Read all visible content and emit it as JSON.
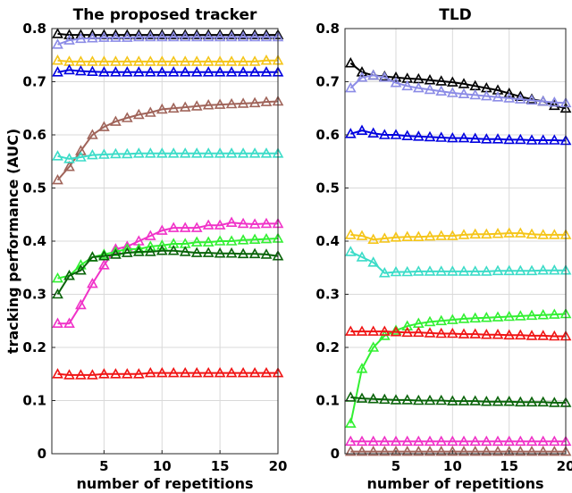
{
  "figure": {
    "ylabel": "tracking performance (AUC)"
  },
  "chart_data": [
    {
      "type": "line",
      "title": "The proposed tracker",
      "xlabel": "number of repetitions",
      "ylabel": "tracking performance (AUC)",
      "xlim": [
        0.5,
        20
      ],
      "ylim": [
        0,
        0.8
      ],
      "xticks": [
        5,
        10,
        15,
        20
      ],
      "yticks": [
        0,
        0.1,
        0.2,
        0.3,
        0.4,
        0.5,
        0.6,
        0.7,
        0.8
      ],
      "grid": true,
      "marker": "triangle",
      "x": [
        1,
        2,
        3,
        4,
        5,
        6,
        7,
        8,
        9,
        10,
        11,
        12,
        13,
        14,
        15,
        16,
        17,
        18,
        19,
        20
      ],
      "series": [
        {
          "color": "#000000",
          "values": [
            0.79,
            0.788,
            0.788,
            0.788,
            0.788,
            0.788,
            0.788,
            0.788,
            0.788,
            0.788,
            0.788,
            0.788,
            0.788,
            0.788,
            0.788,
            0.788,
            0.788,
            0.788,
            0.788,
            0.788
          ]
        },
        {
          "color": "#8c8ce6",
          "values": [
            0.77,
            0.778,
            0.781,
            0.782,
            0.783,
            0.783,
            0.783,
            0.784,
            0.784,
            0.784,
            0.784,
            0.784,
            0.784,
            0.784,
            0.784,
            0.784,
            0.784,
            0.784,
            0.784,
            0.784
          ]
        },
        {
          "color": "#f5c518",
          "values": [
            0.74,
            0.738,
            0.738,
            0.738,
            0.738,
            0.738,
            0.738,
            0.738,
            0.738,
            0.738,
            0.738,
            0.738,
            0.738,
            0.738,
            0.738,
            0.738,
            0.738,
            0.738,
            0.74,
            0.74
          ]
        },
        {
          "color": "#0000e0",
          "values": [
            0.718,
            0.722,
            0.72,
            0.719,
            0.718,
            0.718,
            0.718,
            0.718,
            0.718,
            0.718,
            0.718,
            0.718,
            0.718,
            0.718,
            0.718,
            0.718,
            0.718,
            0.718,
            0.718,
            0.718
          ]
        },
        {
          "color": "#a0645a",
          "values": [
            0.515,
            0.54,
            0.57,
            0.6,
            0.615,
            0.625,
            0.632,
            0.638,
            0.642,
            0.648,
            0.65,
            0.652,
            0.654,
            0.656,
            0.657,
            0.658,
            0.659,
            0.66,
            0.662,
            0.663
          ]
        },
        {
          "color": "#3cdcc8",
          "values": [
            0.56,
            0.555,
            0.558,
            0.562,
            0.563,
            0.564,
            0.564,
            0.565,
            0.565,
            0.565,
            0.565,
            0.565,
            0.565,
            0.565,
            0.565,
            0.565,
            0.565,
            0.565,
            0.565,
            0.565
          ]
        },
        {
          "color": "#f032c8",
          "values": [
            0.245,
            0.245,
            0.28,
            0.32,
            0.355,
            0.385,
            0.39,
            0.4,
            0.41,
            0.42,
            0.425,
            0.425,
            0.425,
            0.43,
            0.43,
            0.435,
            0.433,
            0.432,
            0.433,
            0.433
          ]
        },
        {
          "color": "#32f032",
          "values": [
            0.33,
            0.335,
            0.355,
            0.37,
            0.375,
            0.38,
            0.385,
            0.385,
            0.39,
            0.392,
            0.395,
            0.395,
            0.398,
            0.398,
            0.4,
            0.4,
            0.402,
            0.403,
            0.404,
            0.405
          ]
        },
        {
          "color": "#0a640a",
          "values": [
            0.3,
            0.335,
            0.345,
            0.37,
            0.372,
            0.375,
            0.378,
            0.38,
            0.38,
            0.382,
            0.382,
            0.38,
            0.378,
            0.378,
            0.377,
            0.377,
            0.376,
            0.376,
            0.375,
            0.372
          ]
        },
        {
          "color": "#f01414",
          "values": [
            0.15,
            0.148,
            0.148,
            0.148,
            0.15,
            0.15,
            0.15,
            0.15,
            0.152,
            0.152,
            0.152,
            0.152,
            0.152,
            0.152,
            0.152,
            0.152,
            0.152,
            0.152,
            0.152,
            0.152
          ]
        }
      ]
    },
    {
      "type": "line",
      "title": "TLD",
      "xlabel": "number of repetitions",
      "ylabel": "",
      "xlim": [
        0.5,
        20
      ],
      "ylim": [
        0,
        0.8
      ],
      "xticks": [
        5,
        10,
        15,
        20
      ],
      "yticks": [
        0,
        0.1,
        0.2,
        0.3,
        0.4,
        0.5,
        0.6,
        0.7,
        0.8
      ],
      "grid": true,
      "marker": "triangle",
      "x": [
        1,
        2,
        3,
        4,
        5,
        6,
        7,
        8,
        9,
        10,
        11,
        12,
        13,
        14,
        15,
        16,
        17,
        18,
        19,
        20
      ],
      "series": [
        {
          "color": "#000000",
          "values": [
            0.735,
            0.718,
            0.712,
            0.71,
            0.708,
            0.706,
            0.705,
            0.703,
            0.701,
            0.699,
            0.696,
            0.692,
            0.688,
            0.684,
            0.678,
            0.672,
            0.667,
            0.663,
            0.655,
            0.65
          ]
        },
        {
          "color": "#8c8ce6",
          "values": [
            0.688,
            0.708,
            0.712,
            0.708,
            0.698,
            0.692,
            0.688,
            0.685,
            0.682,
            0.679,
            0.677,
            0.675,
            0.673,
            0.671,
            0.669,
            0.667,
            0.665,
            0.663,
            0.661,
            0.66
          ]
        },
        {
          "color": "#0000e0",
          "values": [
            0.602,
            0.608,
            0.603,
            0.6,
            0.6,
            0.598,
            0.597,
            0.596,
            0.595,
            0.594,
            0.594,
            0.593,
            0.592,
            0.592,
            0.591,
            0.591,
            0.59,
            0.59,
            0.59,
            0.589
          ]
        },
        {
          "color": "#f5c518",
          "values": [
            0.412,
            0.41,
            0.403,
            0.405,
            0.407,
            0.408,
            0.408,
            0.409,
            0.41,
            0.41,
            0.412,
            0.413,
            0.413,
            0.414,
            0.415,
            0.415,
            0.413,
            0.412,
            0.412,
            0.412
          ]
        },
        {
          "color": "#3cdcc8",
          "values": [
            0.38,
            0.37,
            0.36,
            0.34,
            0.342,
            0.342,
            0.343,
            0.343,
            0.343,
            0.343,
            0.343,
            0.343,
            0.343,
            0.344,
            0.344,
            0.344,
            0.344,
            0.345,
            0.345,
            0.345
          ]
        },
        {
          "color": "#32f032",
          "values": [
            0.057,
            0.16,
            0.2,
            0.222,
            0.232,
            0.24,
            0.245,
            0.248,
            0.25,
            0.252,
            0.254,
            0.255,
            0.256,
            0.257,
            0.258,
            0.259,
            0.26,
            0.261,
            0.262,
            0.263
          ]
        },
        {
          "color": "#f01414",
          "values": [
            0.23,
            0.23,
            0.23,
            0.23,
            0.229,
            0.228,
            0.228,
            0.227,
            0.226,
            0.226,
            0.225,
            0.225,
            0.224,
            0.224,
            0.223,
            0.223,
            0.222,
            0.222,
            0.221,
            0.221
          ]
        },
        {
          "color": "#0a640a",
          "values": [
            0.106,
            0.104,
            0.103,
            0.102,
            0.101,
            0.101,
            0.1,
            0.1,
            0.1,
            0.099,
            0.099,
            0.099,
            0.098,
            0.098,
            0.098,
            0.097,
            0.097,
            0.097,
            0.096,
            0.096
          ]
        },
        {
          "color": "#f032c8",
          "values": [
            0.023,
            0.023,
            0.023,
            0.023,
            0.023,
            0.023,
            0.023,
            0.023,
            0.023,
            0.023,
            0.023,
            0.023,
            0.023,
            0.023,
            0.023,
            0.023,
            0.023,
            0.023,
            0.023,
            0.023
          ]
        },
        {
          "color": "#a0645a",
          "values": [
            0.004,
            0.004,
            0.004,
            0.004,
            0.004,
            0.004,
            0.004,
            0.004,
            0.004,
            0.004,
            0.004,
            0.004,
            0.004,
            0.004,
            0.004,
            0.004,
            0.004,
            0.004,
            0.004,
            0.004
          ]
        }
      ]
    }
  ]
}
